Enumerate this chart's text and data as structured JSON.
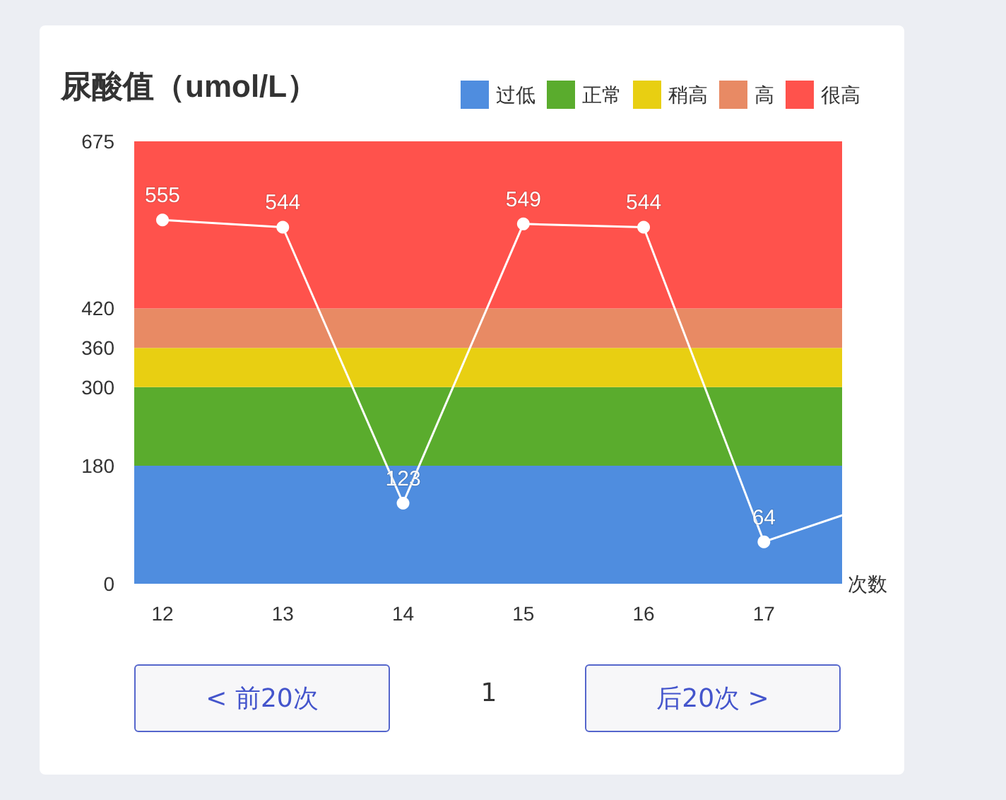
{
  "chart_data": {
    "type": "line",
    "title": "尿酸值（umol/L）",
    "xlabel": "次数",
    "categories": [
      "12",
      "13",
      "14",
      "15",
      "16",
      "17",
      null
    ],
    "series": [
      {
        "color": "#ffffff",
        "values": [
          555,
          544,
          123,
          549,
          544,
          64,
          126
        ],
        "value_labels": [
          "555",
          "544",
          "123",
          "549",
          "544",
          "64",
          null
        ]
      }
    ],
    "ylim": [
      0,
      675
    ],
    "yticks": [
      0,
      180,
      300,
      360,
      420,
      675
    ],
    "grid": false,
    "legend": "top right",
    "marker": "circle",
    "bands": [
      {
        "axis": "y",
        "from": 0,
        "to": 180,
        "label": "过低",
        "color": "#4f8ddf"
      },
      {
        "axis": "y",
        "from": 180,
        "to": 300,
        "label": "正常",
        "color": "#5aac2d"
      },
      {
        "axis": "y",
        "from": 300,
        "to": 360,
        "label": "稍高",
        "color": "#e8cf12"
      },
      {
        "axis": "y",
        "from": 360,
        "to": 420,
        "label": "高",
        "color": "#e88a64"
      },
      {
        "axis": "y",
        "from": 420,
        "to": 675,
        "label": "很高",
        "color": "#ff524c"
      }
    ],
    "annotations": [
      "< 前20次",
      "1",
      "后20次 >"
    ]
  }
}
